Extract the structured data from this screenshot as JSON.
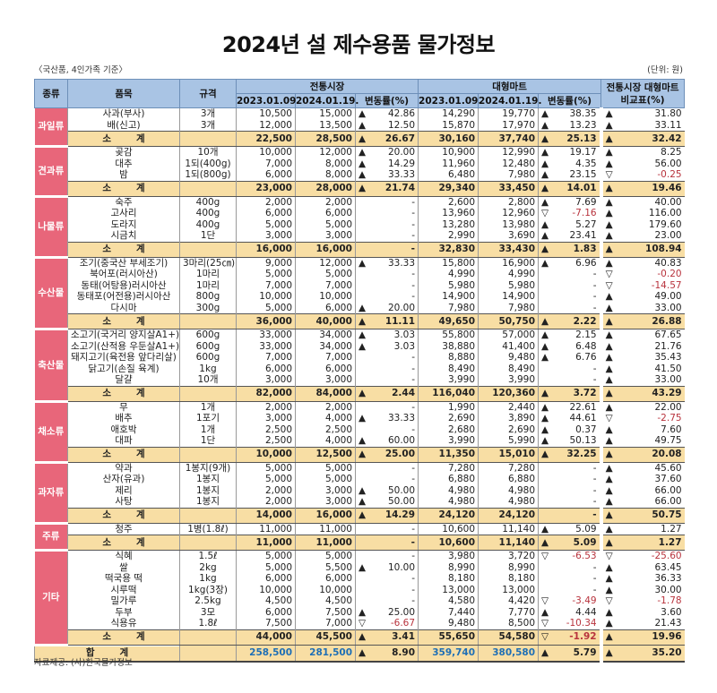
{
  "title": "2024년 설 제수용품 물가정보",
  "basis": "〈국산품, 4인가족 기준〉",
  "unit": "(단위: 원)",
  "source": "자료제공: (사)한국물가정보",
  "headers": {
    "category": "종류",
    "item": "품목",
    "spec": "규격",
    "traditional": "전통시장",
    "mart": "대형마트",
    "compare": "전통시장 대형마트 비교표(%)",
    "date1": "2023.01.09.",
    "date2": "2024.01.19.",
    "change": "변동률(%)"
  },
  "subtotal_label": "소 계",
  "total_label": "합 계",
  "colors": {
    "header": "#a9c4e4",
    "category": "#e8667a",
    "subtotal": "#f8dea4",
    "negative": "#b8333d",
    "total_value": "#1f6fb5"
  },
  "groups": [
    {
      "name": "과일류",
      "items": [
        [
          "사과(부사)",
          "3개",
          "10,500",
          "15,000",
          "▲",
          "42.86",
          "14,290",
          "19,770",
          "▲",
          "38.35",
          "▲",
          "31.80"
        ],
        [
          "배(신고)",
          "3개",
          "12,000",
          "13,500",
          "▲",
          "12.50",
          "15,870",
          "17,970",
          "▲",
          "13.23",
          "▲",
          "33.11"
        ]
      ],
      "subtotal": [
        "22,500",
        "28,500",
        "▲",
        "26.67",
        "30,160",
        "37,740",
        "▲",
        "25.13",
        "▲",
        "32.42"
      ]
    },
    {
      "name": "견과류",
      "items": [
        [
          "곶감",
          "10개",
          "10,000",
          "12,000",
          "▲",
          "20.00",
          "10,900",
          "12,990",
          "▲",
          "19.17",
          "▲",
          "8.25"
        ],
        [
          "대추",
          "1되(400g)",
          "7,000",
          "8,000",
          "▲",
          "14.29",
          "11,960",
          "12,480",
          "▲",
          "4.35",
          "▲",
          "56.00"
        ],
        [
          "밤",
          "1되(800g)",
          "6,000",
          "8,000",
          "▲",
          "33.33",
          "6,480",
          "7,980",
          "▲",
          "23.15",
          "▽",
          "-0.25"
        ]
      ],
      "subtotal": [
        "23,000",
        "28,000",
        "▲",
        "21.74",
        "29,340",
        "33,450",
        "▲",
        "14.01",
        "▲",
        "19.46"
      ]
    },
    {
      "name": "나물류",
      "items": [
        [
          "숙주",
          "400g",
          "2,000",
          "2,000",
          "",
          "-",
          "2,600",
          "2,800",
          "▲",
          "7.69",
          "▲",
          "40.00"
        ],
        [
          "고사리",
          "400g",
          "6,000",
          "6,000",
          "",
          "-",
          "13,960",
          "12,960",
          "▽",
          "-7.16",
          "▲",
          "116.00"
        ],
        [
          "도라지",
          "400g",
          "5,000",
          "5,000",
          "",
          "-",
          "13,280",
          "13,980",
          "▲",
          "5.27",
          "▲",
          "179.60"
        ],
        [
          "시금치",
          "1단",
          "3,000",
          "3,000",
          "",
          "-",
          "2,990",
          "3,690",
          "▲",
          "23.41",
          "▲",
          "23.00"
        ]
      ],
      "subtotal": [
        "16,000",
        "16,000",
        "",
        "-",
        "32,830",
        "33,430",
        "▲",
        "1.83",
        "▲",
        "108.94"
      ]
    },
    {
      "name": "수산물",
      "items": [
        [
          "조기(중국산 부세조기)",
          "3마리(25㎝)",
          "9,000",
          "12,000",
          "▲",
          "33.33",
          "15,800",
          "16,900",
          "▲",
          "6.96",
          "▲",
          "40.83"
        ],
        [
          "북어포(러시아산)",
          "1마리",
          "5,000",
          "5,000",
          "",
          "-",
          "4,990",
          "4,990",
          "",
          "-",
          "▽",
          "-0.20"
        ],
        [
          "동태(어탕용)러시아산",
          "1마리",
          "7,000",
          "7,000",
          "",
          "-",
          "5,980",
          "5,980",
          "",
          "-",
          "▽",
          "-14.57"
        ],
        [
          "동태포(어전용)러시아산",
          "800g",
          "10,000",
          "10,000",
          "",
          "-",
          "14,900",
          "14,900",
          "",
          "-",
          "▲",
          "49.00"
        ],
        [
          "다시마",
          "300g",
          "5,000",
          "6,000",
          "▲",
          "20.00",
          "7,980",
          "7,980",
          "",
          "-",
          "▲",
          "33.00"
        ]
      ],
      "subtotal": [
        "36,000",
        "40,000",
        "▲",
        "11.11",
        "49,650",
        "50,750",
        "▲",
        "2.22",
        "▲",
        "26.88"
      ]
    },
    {
      "name": "축산물",
      "items": [
        [
          "소고기(국거리 양지살A1+)",
          "600g",
          "33,000",
          "34,000",
          "▲",
          "3.03",
          "55,800",
          "57,000",
          "▲",
          "2.15",
          "▲",
          "67.65"
        ],
        [
          "소고기(산적용 우둔살A1+)",
          "600g",
          "33,000",
          "34,000",
          "▲",
          "3.03",
          "38,880",
          "41,400",
          "▲",
          "6.48",
          "▲",
          "21.76"
        ],
        [
          "돼지고기(육전용 앞다리살)",
          "600g",
          "7,000",
          "7,000",
          "",
          "-",
          "8,880",
          "9,480",
          "▲",
          "6.76",
          "▲",
          "35.43"
        ],
        [
          "닭고기(손질 육계)",
          "1kg",
          "6,000",
          "6,000",
          "",
          "-",
          "8,490",
          "8,490",
          "",
          "-",
          "▲",
          "41.50"
        ],
        [
          "달걀",
          "10개",
          "3,000",
          "3,000",
          "",
          "-",
          "3,990",
          "3,990",
          "",
          "-",
          "▲",
          "33.00"
        ]
      ],
      "subtotal": [
        "82,000",
        "84,000",
        "▲",
        "2.44",
        "116,040",
        "120,360",
        "▲",
        "3.72",
        "▲",
        "43.29"
      ]
    },
    {
      "name": "채소류",
      "items": [
        [
          "무",
          "1개",
          "2,000",
          "2,000",
          "",
          "-",
          "1,990",
          "2,440",
          "▲",
          "22.61",
          "▲",
          "22.00"
        ],
        [
          "배추",
          "1포기",
          "3,000",
          "4,000",
          "▲",
          "33.33",
          "2,690",
          "3,890",
          "▲",
          "44.61",
          "▽",
          "-2.75"
        ],
        [
          "애호박",
          "1개",
          "2,500",
          "2,500",
          "",
          "-",
          "2,680",
          "2,690",
          "▲",
          "0.37",
          "▲",
          "7.60"
        ],
        [
          "대파",
          "1단",
          "2,500",
          "4,000",
          "▲",
          "60.00",
          "3,990",
          "5,990",
          "▲",
          "50.13",
          "▲",
          "49.75"
        ]
      ],
      "subtotal": [
        "10,000",
        "12,500",
        "▲",
        "25.00",
        "11,350",
        "15,010",
        "▲",
        "32.25",
        "▲",
        "20.08"
      ]
    },
    {
      "name": "과자류",
      "items": [
        [
          "약과",
          "1봉지(9개)",
          "5,000",
          "5,000",
          "",
          "-",
          "7,280",
          "7,280",
          "",
          "-",
          "▲",
          "45.60"
        ],
        [
          "산자(유과)",
          "1봉지",
          "5,000",
          "5,000",
          "",
          "-",
          "6,880",
          "6,880",
          "",
          "-",
          "▲",
          "37.60"
        ],
        [
          "제리",
          "1봉지",
          "2,000",
          "3,000",
          "▲",
          "50.00",
          "4,980",
          "4,980",
          "",
          "-",
          "▲",
          "66.00"
        ],
        [
          "사탕",
          "1봉지",
          "2,000",
          "3,000",
          "▲",
          "50.00",
          "4,980",
          "4,980",
          "",
          "-",
          "▲",
          "66.00"
        ]
      ],
      "subtotal": [
        "14,000",
        "16,000",
        "▲",
        "14.29",
        "24,120",
        "24,120",
        "",
        "-",
        "▲",
        "50.75"
      ]
    },
    {
      "name": "주류",
      "items": [
        [
          "청주",
          "1병(1.8ℓ)",
          "11,000",
          "11,000",
          "",
          "-",
          "10,600",
          "11,140",
          "▲",
          "5.09",
          "▲",
          "1.27"
        ]
      ],
      "subtotal": [
        "11,000",
        "11,000",
        "",
        "-",
        "10,600",
        "11,140",
        "▲",
        "5.09",
        "▲",
        "1.27"
      ]
    },
    {
      "name": "기타",
      "items": [
        [
          "식혜",
          "1.5ℓ",
          "5,000",
          "5,000",
          "",
          "-",
          "3,980",
          "3,720",
          "▽",
          "-6.53",
          "▽",
          "-25.60"
        ],
        [
          "쌀",
          "2kg",
          "5,000",
          "5,500",
          "▲",
          "10.00",
          "8,990",
          "8,990",
          "",
          "-",
          "▲",
          "63.45"
        ],
        [
          "떡국용 떡",
          "1kg",
          "6,000",
          "6,000",
          "",
          "-",
          "8,180",
          "8,180",
          "",
          "-",
          "▲",
          "36.33"
        ],
        [
          "시루떡",
          "1kg(3장)",
          "10,000",
          "10,000",
          "",
          "-",
          "13,000",
          "13,000",
          "",
          "-",
          "▲",
          "30.00"
        ],
        [
          "밀가루",
          "2.5kg",
          "4,500",
          "4,500",
          "",
          "-",
          "4,580",
          "4,420",
          "▽",
          "-3.49",
          "▽",
          "-1.78"
        ],
        [
          "두부",
          "3모",
          "6,000",
          "7,500",
          "▲",
          "25.00",
          "7,440",
          "7,770",
          "▲",
          "4.44",
          "▲",
          "3.60"
        ],
        [
          "식용유",
          "1.8ℓ",
          "7,500",
          "7,000",
          "▽",
          "-6.67",
          "9,480",
          "8,500",
          "▽",
          "-10.34",
          "▲",
          "21.43"
        ]
      ],
      "subtotal": [
        "44,000",
        "45,500",
        "▲",
        "3.41",
        "55,650",
        "54,580",
        "▽",
        "-1.92",
        "▲",
        "19.96"
      ]
    }
  ],
  "total": [
    "258,500",
    "281,500",
    "▲",
    "8.90",
    "359,740",
    "380,580",
    "▲",
    "5.79",
    "▲",
    "35.20"
  ]
}
